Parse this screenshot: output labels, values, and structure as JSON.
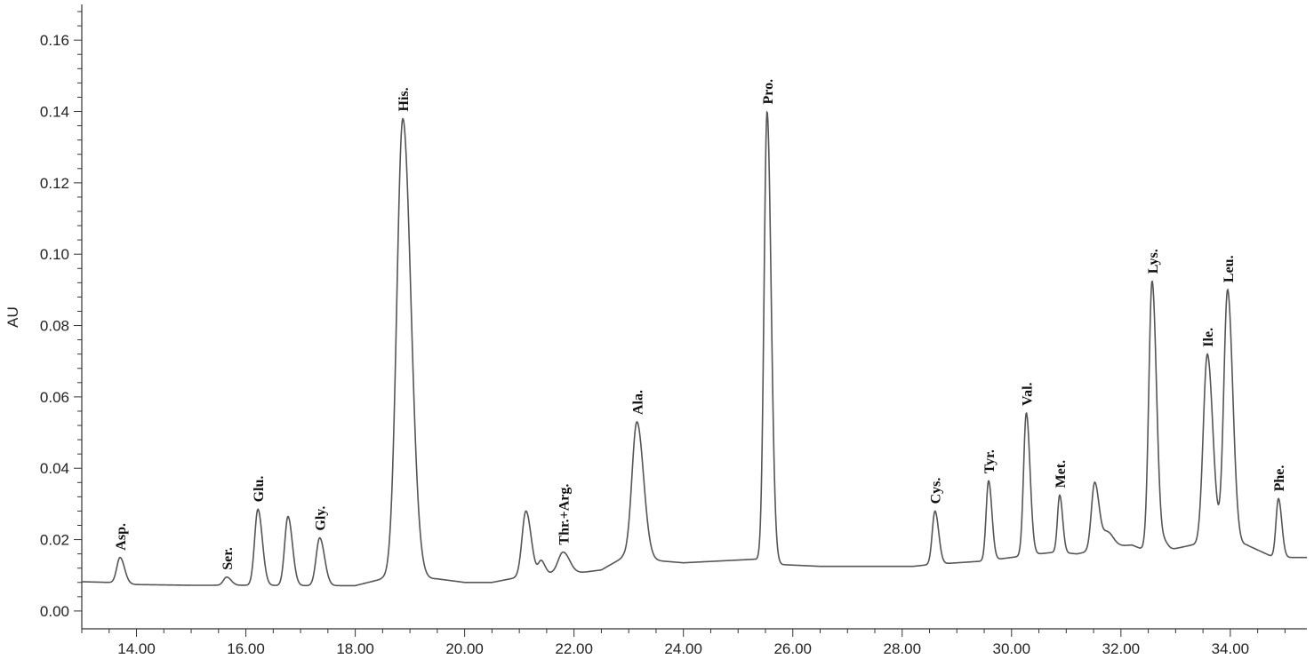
{
  "chart_data": {
    "type": "line",
    "title": "",
    "xlabel": "",
    "ylabel": "AU",
    "xlim": [
      13.0,
      35.4
    ],
    "ylim": [
      -0.005,
      0.17
    ],
    "x_ticks": [
      14,
      16,
      18,
      20,
      22,
      24,
      26,
      28,
      30,
      32,
      34
    ],
    "x_tick_labels": [
      "14.00",
      "16.00",
      "18.00",
      "20.00",
      "22.00",
      "24.00",
      "26.00",
      "28.00",
      "30.00",
      "32.00",
      "34.00"
    ],
    "y_ticks": [
      0.0,
      0.02,
      0.04,
      0.06,
      0.08,
      0.1,
      0.12,
      0.14,
      0.16
    ],
    "y_tick_labels": [
      "0.00",
      "0.02",
      "0.04",
      "0.06",
      "0.08",
      "0.10",
      "0.12",
      "0.14",
      "0.16"
    ],
    "grid": false,
    "line_color": "#555555",
    "baseline": [
      [
        13.0,
        0.0082
      ],
      [
        13.5,
        0.008
      ],
      [
        14.0,
        0.0074
      ],
      [
        15.0,
        0.0072
      ],
      [
        16.0,
        0.0072
      ],
      [
        17.0,
        0.0071
      ],
      [
        18.0,
        0.0071
      ],
      [
        18.5,
        0.009
      ],
      [
        19.5,
        0.009
      ],
      [
        20.0,
        0.008
      ],
      [
        20.5,
        0.008
      ],
      [
        21.0,
        0.0095
      ],
      [
        21.5,
        0.0105
      ],
      [
        22.0,
        0.0105
      ],
      [
        22.5,
        0.0115
      ],
      [
        22.9,
        0.015
      ],
      [
        23.6,
        0.014
      ],
      [
        24.0,
        0.0135
      ],
      [
        25.3,
        0.0145
      ],
      [
        25.8,
        0.013
      ],
      [
        26.5,
        0.0125
      ],
      [
        28.2,
        0.0125
      ],
      [
        28.5,
        0.013
      ],
      [
        29.5,
        0.014
      ],
      [
        30.0,
        0.015
      ],
      [
        30.5,
        0.016
      ],
      [
        30.8,
        0.0165
      ],
      [
        31.2,
        0.016
      ],
      [
        31.8,
        0.018
      ],
      [
        32.2,
        0.0185
      ],
      [
        32.6,
        0.016
      ],
      [
        33.0,
        0.0175
      ],
      [
        33.3,
        0.0185
      ],
      [
        34.3,
        0.0185
      ],
      [
        34.8,
        0.015
      ],
      [
        35.4,
        0.015
      ]
    ],
    "peaks": [
      {
        "label": "Asp.",
        "rt": 13.7,
        "height": 0.015,
        "sigma": 0.06,
        "labeled": true
      },
      {
        "label": "Ser.",
        "rt": 15.65,
        "height": 0.0095,
        "sigma": 0.06,
        "labeled": true
      },
      {
        "label": "Glu.",
        "rt": 16.22,
        "height": 0.0285,
        "sigma": 0.06,
        "labeled": true
      },
      {
        "label": "",
        "rt": 16.77,
        "height": 0.0265,
        "sigma": 0.06,
        "labeled": false
      },
      {
        "label": "Gly.",
        "rt": 17.35,
        "height": 0.0205,
        "sigma": 0.065,
        "labeled": true
      },
      {
        "label": "His.",
        "rt": 18.87,
        "height": 0.138,
        "sigma": 0.11,
        "labeled": true
      },
      {
        "label": "",
        "rt": 21.12,
        "height": 0.028,
        "sigma": 0.07,
        "labeled": false
      },
      {
        "label": "",
        "rt": 21.4,
        "height": 0.014,
        "sigma": 0.05,
        "labeled": false
      },
      {
        "label": "Thr.+Arg.",
        "rt": 21.8,
        "height": 0.0165,
        "sigma": 0.09,
        "labeled": true
      },
      {
        "label": "Ala.",
        "rt": 23.15,
        "height": 0.053,
        "sigma": 0.09,
        "labeled": true
      },
      {
        "label": "Pro.",
        "rt": 25.53,
        "height": 0.14,
        "sigma": 0.055,
        "labeled": true
      },
      {
        "label": "Cys.",
        "rt": 28.6,
        "height": 0.028,
        "sigma": 0.05,
        "labeled": true
      },
      {
        "label": "Tyr.",
        "rt": 29.58,
        "height": 0.0365,
        "sigma": 0.045,
        "labeled": true
      },
      {
        "label": "Val.",
        "rt": 30.27,
        "height": 0.0555,
        "sigma": 0.05,
        "labeled": true
      },
      {
        "label": "Met.",
        "rt": 30.88,
        "height": 0.0325,
        "sigma": 0.04,
        "labeled": true
      },
      {
        "label": "",
        "rt": 31.52,
        "height": 0.036,
        "sigma": 0.06,
        "labeled": false
      },
      {
        "label": "",
        "rt": 31.75,
        "height": 0.022,
        "sigma": 0.08,
        "labeled": false
      },
      {
        "label": "Lys.",
        "rt": 32.57,
        "height": 0.0925,
        "sigma": 0.06,
        "labeled": true
      },
      {
        "label": "",
        "rt": 32.8,
        "height": 0.019,
        "sigma": 0.05,
        "labeled": false
      },
      {
        "label": "Ile.",
        "rt": 33.58,
        "height": 0.072,
        "sigma": 0.075,
        "labeled": true
      },
      {
        "label": "Leu.",
        "rt": 33.95,
        "height": 0.09,
        "sigma": 0.07,
        "labeled": true
      },
      {
        "label": "Phe.",
        "rt": 34.88,
        "height": 0.0315,
        "sigma": 0.045,
        "labeled": true
      }
    ]
  }
}
